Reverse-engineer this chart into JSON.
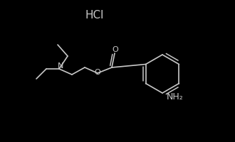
{
  "background_color": "#000000",
  "line_color": "#c8c8c8",
  "text_color": "#c8c8c8",
  "hcl_label": "HCl",
  "N_label": "N",
  "O_label": "O",
  "O2_label": "O",
  "NH2_label": "NH₂",
  "fig_width": 3.3,
  "fig_height": 2.0,
  "dpi": 100,
  "lw": 1.2
}
